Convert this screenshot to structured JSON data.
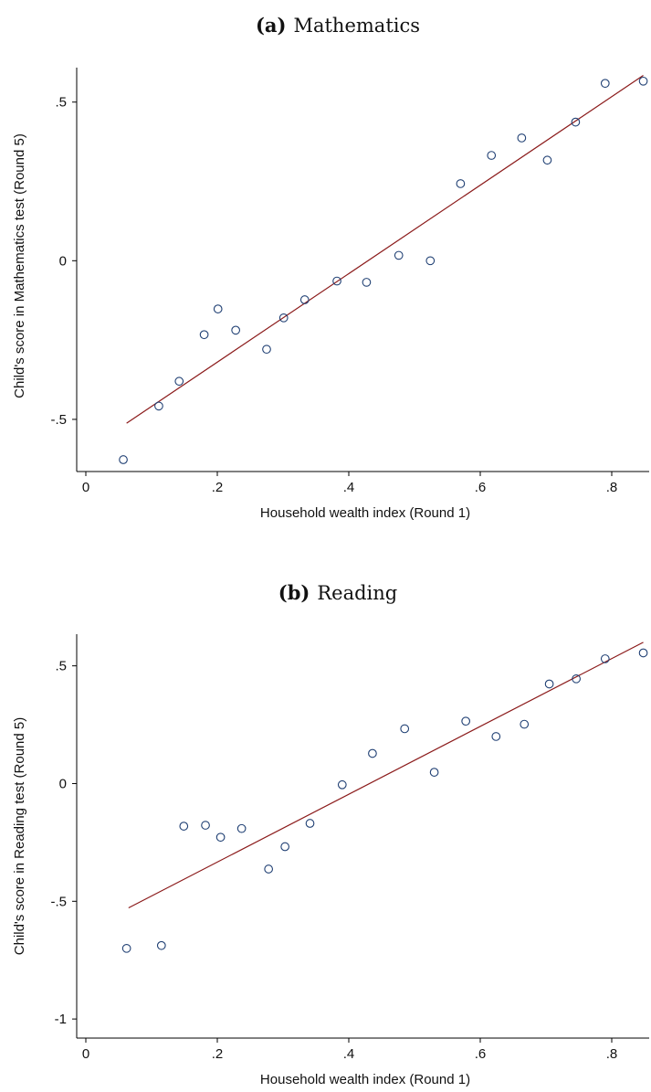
{
  "figure": {
    "colors": {
      "marker": "#1f3f73",
      "fit_line": "#8b1a1a",
      "axis": "#000000"
    }
  },
  "chart_data": [
    {
      "type": "scatter",
      "title_label": "(a)",
      "title_text": "Mathematics",
      "xlabel": "Household wealth index (Round 1)",
      "ylabel": "Child's score in Mathematics test (Round 5)",
      "xlim": [
        0,
        0.85
      ],
      "ylim": [
        -0.65,
        0.6
      ],
      "xticks": [
        {
          "value": 0,
          "label": "0"
        },
        {
          "value": 0.2,
          "label": ".2"
        },
        {
          "value": 0.4,
          "label": ".4"
        },
        {
          "value": 0.6,
          "label": ".6"
        },
        {
          "value": 0.8,
          "label": ".8"
        }
      ],
      "yticks": [
        {
          "value": -0.5,
          "label": "-.5"
        },
        {
          "value": 0,
          "label": "0"
        },
        {
          "value": 0.5,
          "label": ".5"
        }
      ],
      "grid": false,
      "legend": "none",
      "series": [
        {
          "kind": "markers",
          "marker": "hollow-circle",
          "x": [
            0.057,
            0.111,
            0.142,
            0.18,
            0.201,
            0.228,
            0.275,
            0.301,
            0.333,
            0.382,
            0.427,
            0.476,
            0.524,
            0.57,
            0.617,
            0.663,
            0.702,
            0.745,
            0.79,
            0.848
          ],
          "y": [
            -0.627,
            -0.458,
            -0.38,
            -0.233,
            -0.152,
            -0.219,
            -0.279,
            -0.18,
            -0.123,
            -0.064,
            -0.068,
            0.017,
            0.0,
            0.243,
            0.332,
            0.387,
            0.317,
            0.437,
            0.559,
            0.566
          ]
        },
        {
          "kind": "fitted-line",
          "x": [
            0.062,
            0.848
          ],
          "y": [
            -0.512,
            0.584
          ]
        }
      ]
    },
    {
      "type": "scatter",
      "title_label": "(b)",
      "title_text": "Reading",
      "xlabel": "Household wealth index (Round 1)",
      "ylabel": "Child's score in Reading test (Round 5)",
      "xlim": [
        0,
        0.85
      ],
      "ylim": [
        -1.05,
        0.65
      ],
      "xticks": [
        {
          "value": 0,
          "label": "0"
        },
        {
          "value": 0.2,
          "label": ".2"
        },
        {
          "value": 0.4,
          "label": ".4"
        },
        {
          "value": 0.6,
          "label": ".6"
        },
        {
          "value": 0.8,
          "label": ".8"
        }
      ],
      "yticks": [
        {
          "value": -1,
          "label": "-1"
        },
        {
          "value": -0.5,
          "label": "-.5"
        },
        {
          "value": 0,
          "label": "0"
        },
        {
          "value": 0.5,
          "label": ".5"
        }
      ],
      "grid": false,
      "legend": "none",
      "series": [
        {
          "kind": "markers",
          "marker": "hollow-circle",
          "x": [
            0.062,
            0.115,
            0.149,
            0.182,
            0.205,
            0.237,
            0.278,
            0.303,
            0.341,
            0.39,
            0.436,
            0.485,
            0.53,
            0.578,
            0.624,
            0.667,
            0.705,
            0.746,
            0.79,
            0.848
          ],
          "y": [
            -0.7,
            -0.688,
            -0.181,
            -0.177,
            -0.228,
            -0.191,
            -0.363,
            -0.268,
            -0.169,
            -0.005,
            0.128,
            0.233,
            0.048,
            0.265,
            0.2,
            0.252,
            0.423,
            0.445,
            0.53,
            0.555
          ]
        },
        {
          "kind": "fitted-line",
          "x": [
            0.065,
            0.848
          ],
          "y": [
            -0.528,
            0.6
          ]
        }
      ]
    }
  ]
}
